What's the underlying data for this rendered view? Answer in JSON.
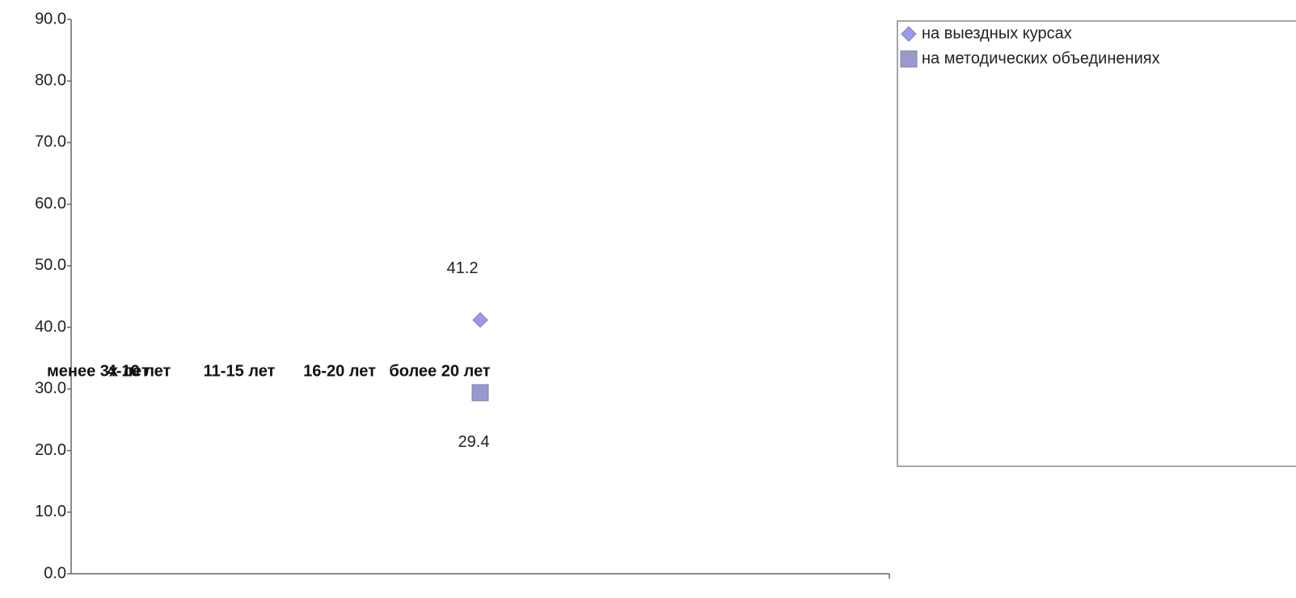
{
  "chart_data": {
    "type": "line",
    "categories": [
      "менее 3х лет",
      "4-10 лет",
      "11-15 лет",
      "16-20 лет",
      "более 20 лет"
    ],
    "series": [
      {
        "name": "на выездных курсах",
        "color": "#9999ee",
        "marker": "diamond",
        "values": [
          null,
          null,
          null,
          null,
          41.2
        ]
      },
      {
        "name": "на методических объединениях",
        "color": "#9999cc",
        "marker": "square",
        "values": [
          null,
          null,
          null,
          null,
          29.4
        ]
      }
    ],
    "ylim": [
      0,
      90
    ],
    "yticks": [
      {
        "value": 0,
        "label": "0.0"
      },
      {
        "value": 10,
        "label": "10.0"
      },
      {
        "value": 20,
        "label": "20.0"
      },
      {
        "value": 30,
        "label": "30.0"
      },
      {
        "value": 40,
        "label": "40.0"
      },
      {
        "value": 50,
        "label": "50.0"
      },
      {
        "value": 60,
        "label": "60.0"
      },
      {
        "value": 70,
        "label": "70.0"
      },
      {
        "value": 80,
        "label": "80.0"
      },
      {
        "value": 90,
        "label": "90.0"
      }
    ],
    "legend": "right"
  }
}
